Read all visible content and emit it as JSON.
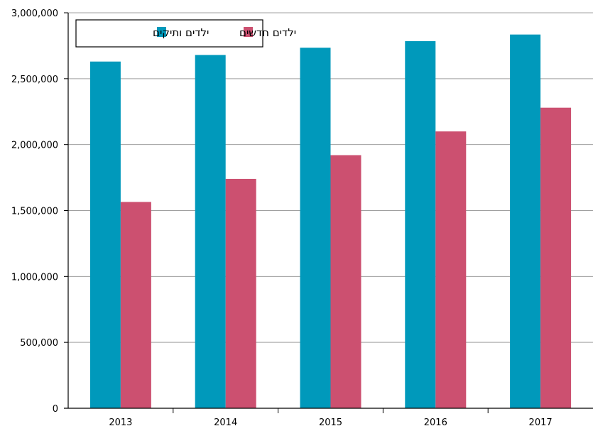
{
  "chart_data": {
    "type": "bar",
    "categories": [
      "2013",
      "2014",
      "2015",
      "2016",
      "2017"
    ],
    "series": [
      {
        "name": "ילדים ותיקים",
        "color": "#0099BB",
        "values": [
          2630000,
          2680000,
          2735000,
          2785000,
          2835000
        ]
      },
      {
        "name": "ילדים חדשים",
        "color": "#CC5070",
        "values": [
          1565000,
          1740000,
          1920000,
          2100000,
          2280000
        ]
      }
    ],
    "ylim": [
      0,
      3000000
    ],
    "yticks": [
      0,
      500000,
      1000000,
      1500000,
      2000000,
      2500000,
      3000000
    ],
    "ytick_labels": [
      "0",
      "500,000",
      "1,000,000",
      "1,500,000",
      "2,000,000",
      "2,500,000",
      "3,000,000"
    ],
    "grid": true,
    "legend_position": "top-left"
  }
}
